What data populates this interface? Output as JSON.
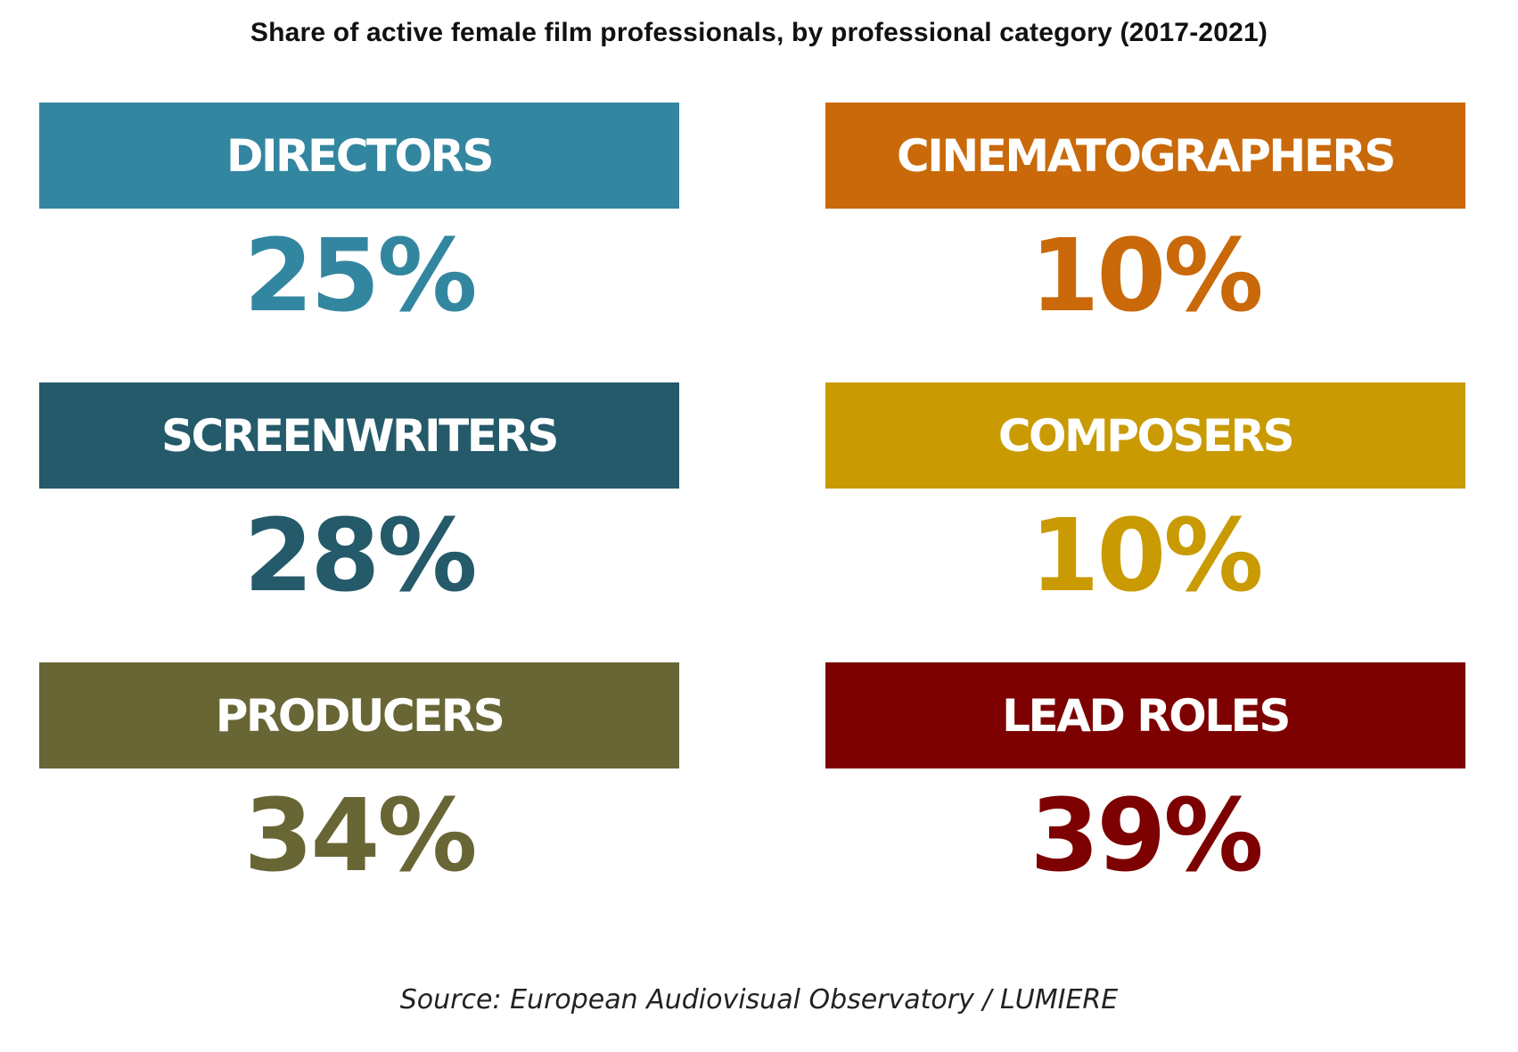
{
  "chart_data": {
    "type": "table",
    "title": "Share of active female film professionals, by professional category (2017-2021)",
    "categories": [
      "DIRECTORS",
      "CINEMATOGRAPHERS",
      "SCREENWRITERS",
      "COMPOSERS",
      "PRODUCERS",
      "LEAD ROLES"
    ],
    "values": [
      25,
      10,
      28,
      10,
      34,
      39
    ],
    "value_labels": [
      "25%",
      "10%",
      "28%",
      "10%",
      "34%",
      "39%"
    ],
    "unit": "%",
    "colors": [
      "#33869f",
      "#c9690a",
      "#245a6a",
      "#c99a02",
      "#686635",
      "#7d0101"
    ],
    "source": "Source: European Audiovisual Observatory / LUMIERE"
  }
}
